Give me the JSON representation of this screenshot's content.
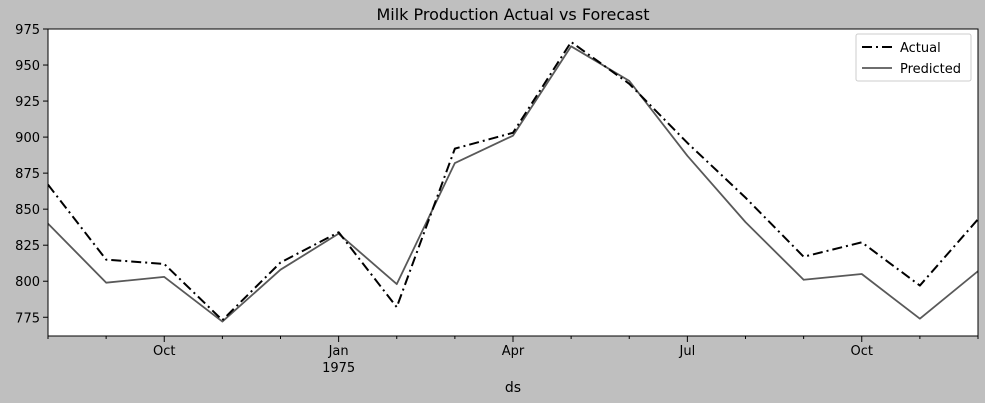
{
  "chart_data": {
    "type": "line",
    "title": "Milk Production Actual vs Forecast",
    "xlabel": "ds",
    "ylabel": "",
    "x": [
      "1974-08",
      "1974-09",
      "1974-10",
      "1974-11",
      "1974-12",
      "1975-01",
      "1975-02",
      "1975-03",
      "1975-04",
      "1975-05",
      "1975-06",
      "1975-07",
      "1975-08",
      "1975-09",
      "1975-10",
      "1975-11",
      "1975-12"
    ],
    "xlim": [
      "1974-08",
      "1975-12"
    ],
    "ylim": [
      762,
      975
    ],
    "yticks": [
      775,
      800,
      825,
      850,
      875,
      900,
      925,
      950,
      975
    ],
    "xticks_major": [
      {
        "x": "1974-10",
        "label": "Oct",
        "sublabel": ""
      },
      {
        "x": "1975-01",
        "label": "Jan",
        "sublabel": "1975"
      },
      {
        "x": "1975-04",
        "label": "Apr",
        "sublabel": ""
      },
      {
        "x": "1975-07",
        "label": "Jul",
        "sublabel": ""
      },
      {
        "x": "1975-10",
        "label": "Oct",
        "sublabel": ""
      }
    ],
    "xticks_minor": [
      "1974-08",
      "1974-09",
      "1974-11",
      "1974-12",
      "1975-02",
      "1975-03",
      "1975-05",
      "1975-06",
      "1975-08",
      "1975-09",
      "1975-11",
      "1975-12"
    ],
    "grid": false,
    "legend": "top-right",
    "series": [
      {
        "name": "Actual",
        "style": "dashdot",
        "color": "#000000",
        "values": [
          867,
          815,
          812,
          773,
          813,
          834,
          782,
          892,
          903,
          966,
          937,
          896,
          858,
          817,
          827,
          797,
          843
        ]
      },
      {
        "name": "Predicted",
        "style": "solid",
        "color": "#595959",
        "values": [
          840,
          799,
          803,
          772,
          808,
          833,
          798,
          882,
          901,
          963,
          939,
          887,
          841,
          801,
          805,
          774,
          807
        ]
      }
    ]
  }
}
